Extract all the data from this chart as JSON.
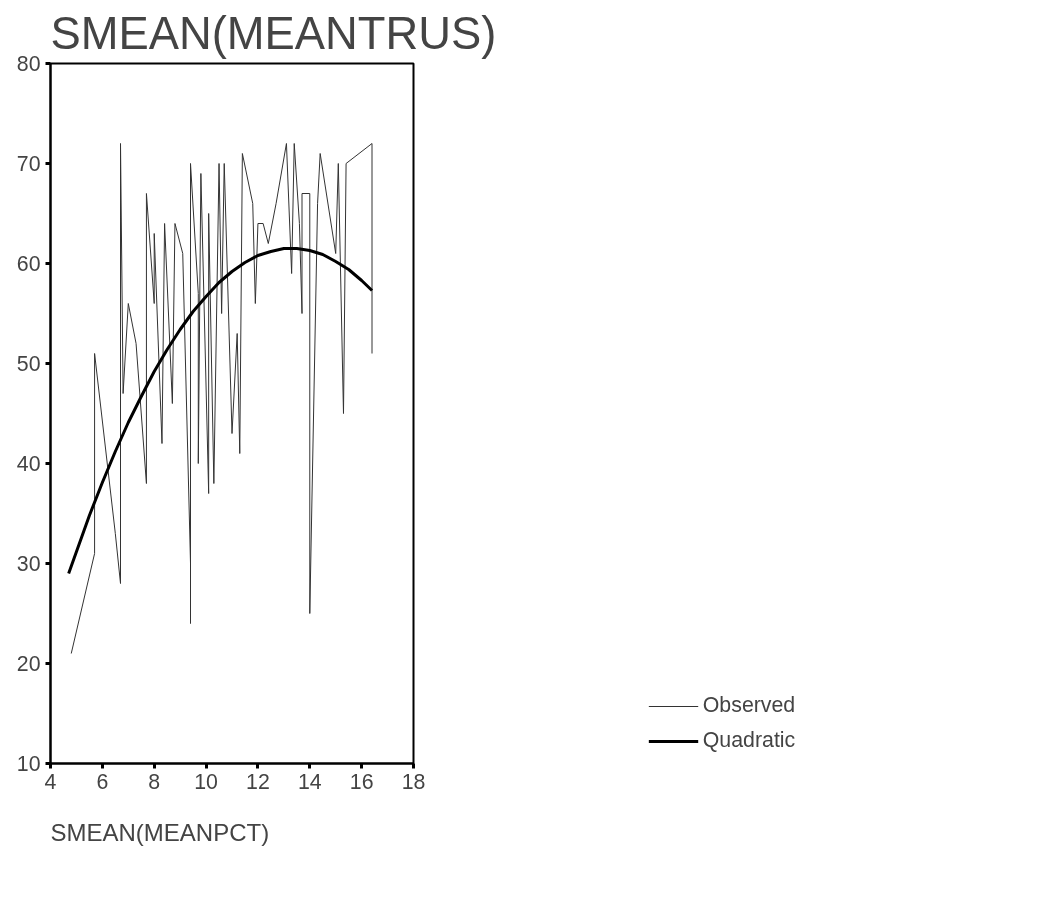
{
  "chart_data": {
    "type": "line",
    "title": "SMEAN(MEANTRUS)",
    "xlabel": "SMEAN(MEANPCT)",
    "xlim": [
      4,
      18
    ],
    "ylim": [
      10,
      80
    ],
    "xticks": [
      4,
      6,
      8,
      10,
      12,
      14,
      16,
      18
    ],
    "yticks": [
      10,
      20,
      30,
      40,
      50,
      60,
      70,
      80
    ],
    "grid": false,
    "legend": "bottom right",
    "marker": "none",
    "series": [
      {
        "name": "Observed",
        "color": "#333333",
        "line_style": "solid",
        "x": [
          4.8,
          5.7,
          5.7,
          6.5,
          6.7,
          6.7,
          6.8,
          7.0,
          7.3,
          7.7,
          7.7,
          8.0,
          8.0,
          8.3,
          8.4,
          8.7,
          8.8,
          9.1,
          9.4,
          9.4,
          9.4,
          9.7,
          9.7,
          9.8,
          10.1,
          10.1,
          10.3,
          10.5,
          10.6,
          10.7,
          11.0,
          11.2,
          11.3,
          11.4,
          11.8,
          11.9,
          12.0,
          12.2,
          12.4,
          12.7,
          13.1,
          13.3,
          13.4,
          13.6,
          13.7,
          13.7,
          14.0,
          14.0,
          14.3,
          14.4,
          15.0,
          15.1,
          15.3,
          15.4,
          16.4,
          16.4
        ],
        "values": [
          21,
          31,
          51,
          33,
          28,
          72,
          47,
          56,
          52,
          38,
          67,
          56,
          63,
          42,
          64,
          46,
          64,
          61,
          30,
          24,
          70,
          57,
          40,
          69,
          37,
          65,
          38,
          70,
          55,
          70,
          43,
          53,
          41,
          71,
          66,
          56,
          64,
          64,
          62,
          66,
          72,
          59,
          72,
          64,
          55,
          67,
          67,
          25,
          66,
          71,
          61,
          70,
          45,
          70,
          72,
          51
        ]
      },
      {
        "name": "Quadratic",
        "color": "#000000",
        "line_style": "solid",
        "x": [
          4.7,
          5.5,
          6,
          6.5,
          7,
          7.5,
          8,
          8.5,
          9,
          9.5,
          10,
          10.5,
          11,
          11.5,
          12,
          12.5,
          13,
          13.5,
          14,
          14.5,
          15,
          15.5,
          16,
          16.4
        ],
        "values": [
          29.0,
          34.8,
          38.1,
          41.2,
          44.1,
          46.7,
          49.2,
          51.4,
          53.4,
          55.2,
          56.7,
          58.1,
          59.2,
          60.1,
          60.8,
          61.2,
          61.5,
          61.5,
          61.3,
          60.9,
          60.2,
          59.4,
          58.3,
          57.3
        ]
      }
    ]
  }
}
